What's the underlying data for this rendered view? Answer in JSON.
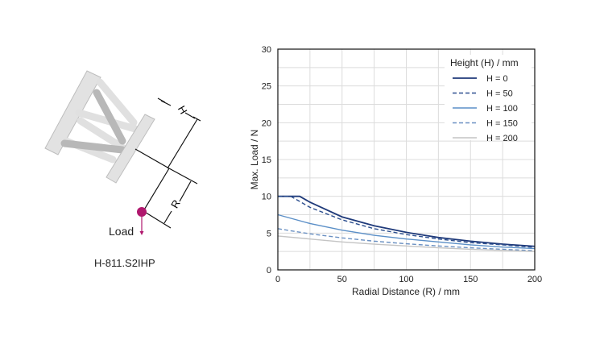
{
  "diagram": {
    "model_label": "H-811.S2IHP",
    "load_label": "Load",
    "h_label": "H",
    "r_label": "R",
    "load_color": "#b0186e"
  },
  "chart_data": {
    "type": "line",
    "xlabel": "Radial Distance (R) / mm",
    "ylabel": "Max. Load / N",
    "xlim": [
      0,
      200
    ],
    "ylim": [
      0,
      30
    ],
    "xticks": [
      0,
      50,
      100,
      150,
      200
    ],
    "yticks": [
      0,
      5,
      10,
      15,
      20,
      25,
      30
    ],
    "grid": true,
    "legend_title": "Height (H) / mm",
    "legend_position": "top-right",
    "series": [
      {
        "name": "H = 0",
        "color": "#1f3a7a",
        "dashed": false,
        "x": [
          0,
          17,
          25,
          50,
          75,
          100,
          125,
          150,
          175,
          200
        ],
        "y": [
          10,
          10,
          9.2,
          7.2,
          6.0,
          5.1,
          4.4,
          3.9,
          3.5,
          3.2
        ]
      },
      {
        "name": "H = 50",
        "color": "#2c4f8f",
        "dashed": true,
        "x": [
          0,
          10,
          25,
          50,
          75,
          100,
          125,
          150,
          175,
          200
        ],
        "y": [
          10,
          10,
          8.5,
          6.8,
          5.6,
          4.8,
          4.2,
          3.7,
          3.4,
          3.05
        ]
      },
      {
        "name": "H = 100",
        "color": "#5b8fc7",
        "dashed": false,
        "x": [
          0,
          25,
          50,
          75,
          100,
          125,
          150,
          175,
          200
        ],
        "y": [
          7.5,
          6.3,
          5.4,
          4.7,
          4.2,
          3.8,
          3.4,
          3.1,
          2.9
        ]
      },
      {
        "name": "H = 150",
        "color": "#6a90c2",
        "dashed": true,
        "x": [
          0,
          25,
          50,
          75,
          100,
          125,
          150,
          175,
          200
        ],
        "y": [
          5.6,
          4.9,
          4.35,
          3.9,
          3.55,
          3.25,
          3.0,
          2.8,
          2.6
        ]
      },
      {
        "name": "H = 200",
        "color": "#c4c4c4",
        "dashed": false,
        "x": [
          0,
          25,
          50,
          75,
          100,
          125,
          150,
          175,
          200
        ],
        "y": [
          4.6,
          4.2,
          3.8,
          3.5,
          3.25,
          3.0,
          2.8,
          2.65,
          2.5
        ]
      }
    ]
  }
}
